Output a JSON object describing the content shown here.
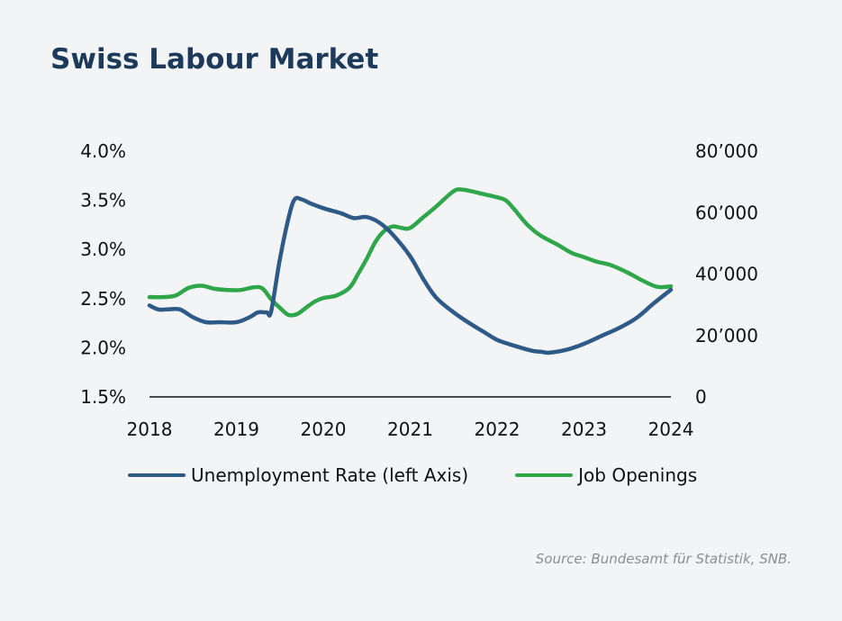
{
  "title": "Swiss Labour Market",
  "source": "Source: Bundesamt für Statistik, SNB.",
  "colors": {
    "unemployment": "#2e5a87",
    "openings": "#2fa64a",
    "axis": "#111111",
    "title": "#1d3a5b"
  },
  "chart_data": {
    "type": "line",
    "title": "Swiss Labour Market",
    "x_ticks": [
      "2018",
      "2019",
      "2020",
      "2021",
      "2022",
      "2023",
      "2024"
    ],
    "y_left": {
      "ticks": [
        "1.5%",
        "2.0%",
        "2.5%",
        "3.0%",
        "3.5%",
        "4.0%"
      ],
      "range": [
        1.5,
        4.0
      ]
    },
    "y_right": {
      "ticks": [
        "0",
        "20’000",
        "40’000",
        "60’000",
        "80’000"
      ],
      "range": [
        0,
        80000
      ]
    },
    "grid": false,
    "legend_position": "bottom",
    "series": [
      {
        "name": "Unemployment Rate (left Axis)",
        "axis": "left",
        "x": [
          2018.0,
          2018.1,
          2018.2,
          2018.35,
          2018.5,
          2018.65,
          2018.8,
          2019.0,
          2019.15,
          2019.25,
          2019.35,
          2019.4,
          2019.5,
          2019.6,
          2019.67,
          2019.75,
          2019.85,
          2020.0,
          2020.2,
          2020.35,
          2020.5,
          2020.65,
          2020.8,
          2021.0,
          2021.15,
          2021.3,
          2021.5,
          2021.7,
          2021.85,
          2022.0,
          2022.2,
          2022.4,
          2022.5,
          2022.6,
          2022.8,
          2023.0,
          2023.2,
          2023.4,
          2023.6,
          2023.8,
          2024.0
        ],
        "values": [
          2.43,
          2.39,
          2.39,
          2.39,
          2.31,
          2.26,
          2.26,
          2.26,
          2.31,
          2.36,
          2.36,
          2.37,
          2.9,
          3.32,
          3.51,
          3.51,
          3.47,
          3.42,
          3.37,
          3.32,
          3.33,
          3.27,
          3.15,
          2.93,
          2.7,
          2.51,
          2.36,
          2.24,
          2.16,
          2.08,
          2.02,
          1.97,
          1.96,
          1.95,
          1.98,
          2.04,
          2.12,
          2.2,
          2.3,
          2.45,
          2.59
        ]
      },
      {
        "name": "Job Openings",
        "axis": "right",
        "x": [
          2018.0,
          2018.15,
          2018.3,
          2018.45,
          2018.6,
          2018.75,
          2018.9,
          2019.05,
          2019.2,
          2019.3,
          2019.4,
          2019.5,
          2019.6,
          2019.7,
          2019.8,
          2019.9,
          2020.0,
          2020.15,
          2020.3,
          2020.4,
          2020.5,
          2020.6,
          2020.7,
          2020.8,
          2020.9,
          2021.0,
          2021.15,
          2021.3,
          2021.5,
          2021.6,
          2021.7,
          2021.85,
          2022.0,
          2022.1,
          2022.2,
          2022.35,
          2022.5,
          2022.7,
          2022.85,
          2023.0,
          2023.15,
          2023.3,
          2023.5,
          2023.7,
          2023.85,
          2024.0
        ],
        "values": [
          32500,
          32500,
          33000,
          35500,
          36200,
          35200,
          34800,
          34800,
          35700,
          35300,
          31800,
          29000,
          26700,
          27000,
          29000,
          31000,
          32200,
          33000,
          35500,
          40000,
          45000,
          50500,
          54000,
          55500,
          55000,
          55000,
          58500,
          62000,
          67000,
          67500,
          67000,
          66000,
          65000,
          64000,
          61000,
          56000,
          52500,
          49500,
          47000,
          45500,
          44000,
          43000,
          40500,
          37500,
          35800,
          36000
        ]
      }
    ]
  }
}
